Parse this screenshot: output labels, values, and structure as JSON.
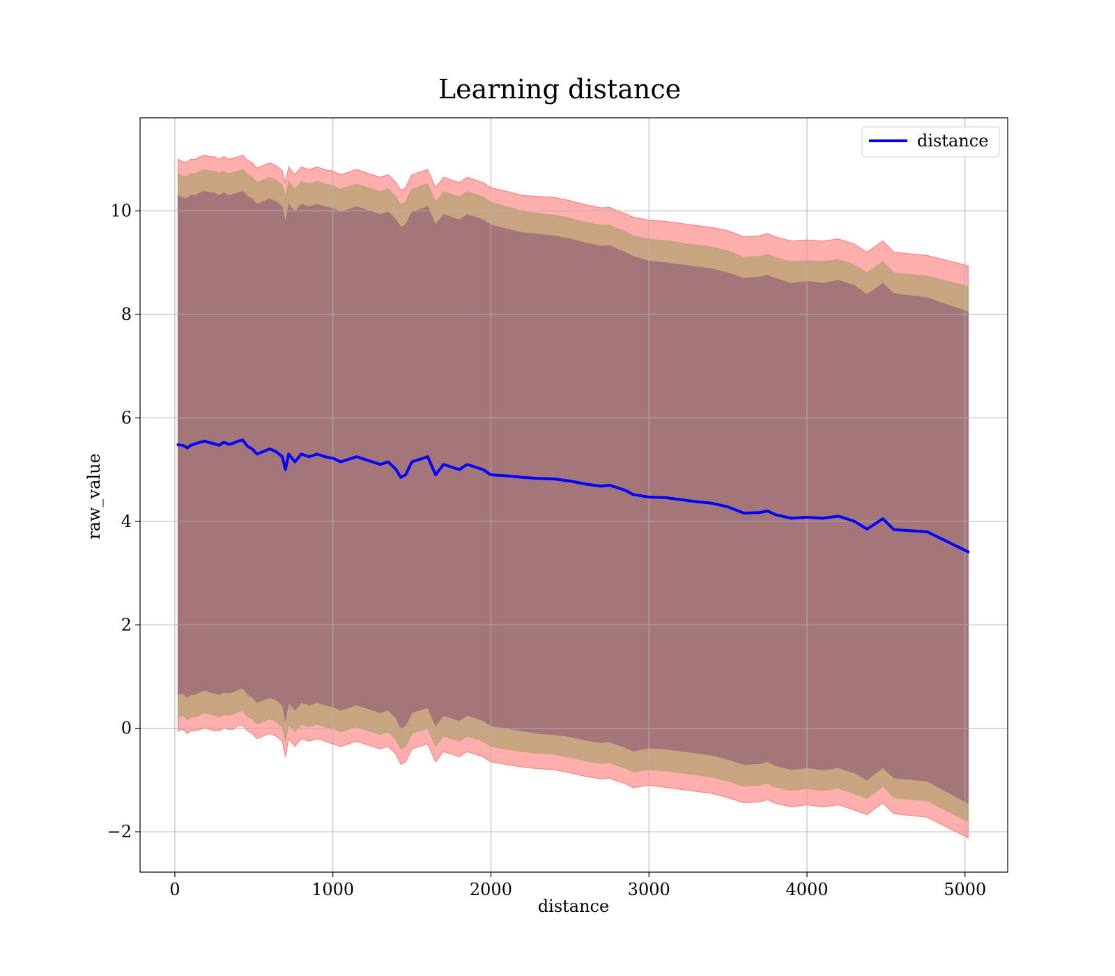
{
  "chart_data": {
    "type": "line",
    "title": "Learning distance",
    "xlabel": "distance",
    "ylabel": "raw_value",
    "xlim": [
      -220,
      5270
    ],
    "ylim": [
      -2.78,
      11.8
    ],
    "xticks": [
      0,
      1000,
      2000,
      3000,
      4000,
      5000
    ],
    "xtick_labels": [
      "0",
      "1000",
      "2000",
      "3000",
      "4000",
      "5000"
    ],
    "yticks": [
      -2,
      0,
      2,
      4,
      6,
      8,
      10
    ],
    "ytick_labels": [
      "−2",
      "0",
      "2",
      "4",
      "6",
      "8",
      "10"
    ],
    "grid": true,
    "legend": {
      "position": "top-right",
      "entries": [
        "distance"
      ]
    },
    "colors": {
      "line": "#0000ff",
      "band_outer": "#ff6b6b",
      "band_middle": "#b5a070",
      "band_inner": "#a07078"
    },
    "x": [
      20,
      50,
      80,
      100,
      130,
      160,
      190,
      220,
      250,
      280,
      310,
      340,
      370,
      400,
      430,
      460,
      490,
      520,
      560,
      600,
      640,
      680,
      700,
      720,
      760,
      800,
      850,
      900,
      950,
      1000,
      1050,
      1100,
      1150,
      1200,
      1250,
      1300,
      1350,
      1400,
      1430,
      1460,
      1500,
      1550,
      1600,
      1650,
      1700,
      1750,
      1800,
      1850,
      1900,
      1950,
      2000,
      2100,
      2200,
      2300,
      2400,
      2500,
      2600,
      2700,
      2750,
      2800,
      2850,
      2900,
      3000,
      3100,
      3200,
      3300,
      3400,
      3500,
      3600,
      3700,
      3750,
      3800,
      3900,
      4000,
      4100,
      4200,
      4300,
      4380,
      4480,
      4550,
      4760,
      5020
    ],
    "series": [
      {
        "name": "distance",
        "values": [
          5.48,
          5.47,
          5.42,
          5.47,
          5.5,
          5.53,
          5.55,
          5.52,
          5.5,
          5.47,
          5.53,
          5.49,
          5.51,
          5.55,
          5.57,
          5.45,
          5.4,
          5.3,
          5.35,
          5.4,
          5.35,
          5.25,
          5.0,
          5.3,
          5.15,
          5.3,
          5.25,
          5.3,
          5.25,
          5.22,
          5.15,
          5.2,
          5.25,
          5.2,
          5.15,
          5.1,
          5.15,
          5.0,
          4.85,
          4.9,
          5.15,
          5.2,
          5.25,
          4.9,
          5.1,
          5.05,
          5.0,
          5.1,
          5.05,
          5.0,
          4.9,
          4.88,
          4.85,
          4.83,
          4.82,
          4.78,
          4.72,
          4.68,
          4.7,
          4.65,
          4.6,
          4.52,
          4.47,
          4.46,
          4.42,
          4.38,
          4.35,
          4.28,
          4.16,
          4.17,
          4.2,
          4.13,
          4.06,
          4.08,
          4.06,
          4.1,
          4.0,
          3.85,
          4.05,
          3.84,
          3.8,
          3.41
        ]
      }
    ],
    "bands": [
      {
        "upper": [
          11.0,
          10.95,
          10.95,
          11.0,
          11.0,
          11.05,
          11.08,
          11.05,
          11.05,
          11.0,
          11.05,
          11.0,
          11.02,
          11.05,
          11.08,
          10.98,
          10.93,
          10.83,
          10.88,
          10.93,
          10.88,
          10.78,
          10.55,
          10.85,
          10.7,
          10.85,
          10.8,
          10.85,
          10.8,
          10.77,
          10.7,
          10.75,
          10.8,
          10.75,
          10.7,
          10.65,
          10.7,
          10.55,
          10.4,
          10.45,
          10.7,
          10.75,
          10.8,
          10.45,
          10.65,
          10.6,
          10.55,
          10.65,
          10.6,
          10.55,
          10.45,
          10.38,
          10.3,
          10.28,
          10.26,
          10.2,
          10.12,
          10.06,
          10.07,
          10.0,
          9.95,
          9.88,
          9.82,
          9.8,
          9.76,
          9.72,
          9.68,
          9.62,
          9.5,
          9.52,
          9.56,
          9.5,
          9.42,
          9.44,
          9.42,
          9.46,
          9.36,
          9.2,
          9.42,
          9.2,
          9.14,
          8.94
        ],
        "lower": [
          -0.05,
          -0.02,
          -0.1,
          -0.05,
          -0.05,
          -0.02,
          0.0,
          -0.02,
          -0.05,
          -0.05,
          0.0,
          -0.02,
          -0.02,
          0.05,
          0.05,
          -0.05,
          -0.1,
          -0.2,
          -0.15,
          -0.1,
          -0.15,
          -0.25,
          -0.55,
          -0.2,
          -0.35,
          -0.2,
          -0.25,
          -0.2,
          -0.25,
          -0.3,
          -0.35,
          -0.3,
          -0.25,
          -0.3,
          -0.35,
          -0.4,
          -0.35,
          -0.5,
          -0.7,
          -0.65,
          -0.4,
          -0.35,
          -0.3,
          -0.65,
          -0.45,
          -0.5,
          -0.55,
          -0.45,
          -0.5,
          -0.55,
          -0.65,
          -0.7,
          -0.75,
          -0.78,
          -0.8,
          -0.86,
          -0.93,
          -0.98,
          -0.96,
          -1.02,
          -1.07,
          -1.15,
          -1.1,
          -1.14,
          -1.18,
          -1.22,
          -1.26,
          -1.34,
          -1.44,
          -1.42,
          -1.38,
          -1.45,
          -1.52,
          -1.48,
          -1.52,
          -1.48,
          -1.58,
          -1.67,
          -1.44,
          -1.65,
          -1.72,
          -2.12
        ]
      },
      {
        "upper": [
          10.72,
          10.67,
          10.67,
          10.72,
          10.72,
          10.77,
          10.8,
          10.77,
          10.77,
          10.72,
          10.77,
          10.72,
          10.74,
          10.77,
          10.8,
          10.7,
          10.65,
          10.55,
          10.6,
          10.65,
          10.6,
          10.5,
          10.27,
          10.57,
          10.42,
          10.57,
          10.52,
          10.57,
          10.52,
          10.49,
          10.42,
          10.47,
          10.52,
          10.47,
          10.42,
          10.37,
          10.42,
          10.27,
          10.12,
          10.17,
          10.42,
          10.47,
          10.52,
          10.17,
          10.37,
          10.32,
          10.27,
          10.37,
          10.32,
          10.27,
          10.17,
          10.08,
          9.99,
          9.95,
          9.92,
          9.86,
          9.78,
          9.72,
          9.73,
          9.66,
          9.6,
          9.52,
          9.45,
          9.43,
          9.38,
          9.34,
          9.3,
          9.23,
          9.1,
          9.12,
          9.16,
          9.1,
          9.02,
          9.04,
          9.02,
          9.06,
          8.96,
          8.8,
          9.02,
          8.8,
          8.74,
          8.54
        ],
        "lower": [
          0.22,
          0.25,
          0.17,
          0.22,
          0.22,
          0.27,
          0.3,
          0.27,
          0.25,
          0.22,
          0.27,
          0.25,
          0.27,
          0.32,
          0.35,
          0.23,
          0.18,
          0.08,
          0.13,
          0.18,
          0.13,
          0.03,
          -0.25,
          0.08,
          -0.07,
          0.08,
          0.03,
          0.08,
          0.03,
          0.0,
          -0.07,
          -0.02,
          0.03,
          -0.02,
          -0.07,
          -0.12,
          -0.07,
          -0.22,
          -0.4,
          -0.35,
          -0.1,
          -0.05,
          0.0,
          -0.35,
          -0.15,
          -0.2,
          -0.25,
          -0.15,
          -0.2,
          -0.25,
          -0.35,
          -0.4,
          -0.45,
          -0.48,
          -0.5,
          -0.56,
          -0.63,
          -0.68,
          -0.66,
          -0.72,
          -0.77,
          -0.84,
          -0.8,
          -0.82,
          -0.86,
          -0.9,
          -0.94,
          -1.02,
          -1.12,
          -1.1,
          -1.06,
          -1.13,
          -1.2,
          -1.16,
          -1.2,
          -1.16,
          -1.26,
          -1.36,
          -1.12,
          -1.34,
          -1.4,
          -1.8
        ]
      },
      {
        "upper": [
          10.3,
          10.25,
          10.25,
          10.3,
          10.3,
          10.35,
          10.38,
          10.35,
          10.35,
          10.3,
          10.35,
          10.3,
          10.32,
          10.35,
          10.38,
          10.28,
          10.23,
          10.13,
          10.18,
          10.23,
          10.18,
          10.08,
          9.78,
          10.13,
          9.98,
          10.13,
          10.08,
          10.13,
          10.08,
          10.05,
          9.98,
          10.03,
          10.08,
          10.03,
          9.98,
          9.93,
          9.98,
          9.83,
          9.68,
          9.73,
          9.98,
          10.03,
          10.08,
          9.73,
          9.93,
          9.88,
          9.83,
          9.93,
          9.88,
          9.83,
          9.73,
          9.65,
          9.58,
          9.55,
          9.52,
          9.46,
          9.38,
          9.32,
          9.33,
          9.26,
          9.2,
          9.12,
          9.03,
          9.0,
          8.96,
          8.92,
          8.88,
          8.8,
          8.7,
          8.72,
          8.76,
          8.7,
          8.6,
          8.64,
          8.6,
          8.66,
          8.56,
          8.38,
          8.6,
          8.4,
          8.32,
          8.05
        ],
        "lower": [
          0.66,
          0.68,
          0.6,
          0.65,
          0.66,
          0.7,
          0.74,
          0.7,
          0.68,
          0.65,
          0.7,
          0.68,
          0.7,
          0.75,
          0.78,
          0.66,
          0.6,
          0.5,
          0.55,
          0.6,
          0.55,
          0.45,
          0.15,
          0.5,
          0.35,
          0.5,
          0.45,
          0.5,
          0.45,
          0.42,
          0.35,
          0.4,
          0.45,
          0.4,
          0.35,
          0.3,
          0.35,
          0.2,
          0.0,
          0.05,
          0.3,
          0.35,
          0.4,
          0.05,
          0.25,
          0.2,
          0.15,
          0.25,
          0.2,
          0.15,
          0.05,
          0.0,
          -0.05,
          -0.1,
          -0.12,
          -0.16,
          -0.23,
          -0.28,
          -0.26,
          -0.32,
          -0.37,
          -0.44,
          -0.38,
          -0.4,
          -0.44,
          -0.48,
          -0.52,
          -0.6,
          -0.7,
          -0.68,
          -0.64,
          -0.72,
          -0.8,
          -0.76,
          -0.8,
          -0.76,
          -0.86,
          -1.0,
          -0.76,
          -0.96,
          -1.02,
          -1.45
        ]
      }
    ]
  }
}
